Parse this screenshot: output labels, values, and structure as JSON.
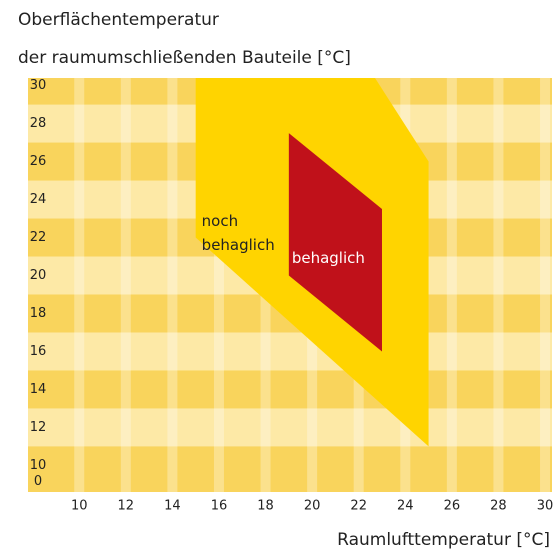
{
  "chart_data": {
    "type": "polygon",
    "title": [
      "Oberflächentemperatur",
      "der raumumschließenden Bauteile [°C]"
    ],
    "x_label": "Raumlufttemperatur [°C]",
    "y_origin_label": "0",
    "xlim": [
      7.8,
      30.3
    ],
    "xticks": [
      10,
      12,
      14,
      16,
      18,
      20,
      22,
      24,
      26,
      28,
      30
    ],
    "ylim": [
      8.6,
      30.4
    ],
    "yticks": [
      10,
      12,
      14,
      16,
      18,
      20,
      22,
      24,
      26,
      28,
      30
    ],
    "band_colors": [
      "#f9d45c",
      "#fde9a6"
    ],
    "series": [
      {
        "name": [
          "noch",
          "behaglich"
        ],
        "color": "#ffd400",
        "label_color": "#222222",
        "x": [
          15,
          22.7,
          25,
          25,
          15
        ],
        "values": [
          30.4,
          30.4,
          26,
          11,
          22
        ]
      },
      {
        "name": [
          "behaglich"
        ],
        "color": "#c0111a",
        "label_color": "#ffffff",
        "x": [
          19,
          23,
          23,
          19
        ],
        "values": [
          27.5,
          23.5,
          16,
          20
        ]
      }
    ]
  }
}
